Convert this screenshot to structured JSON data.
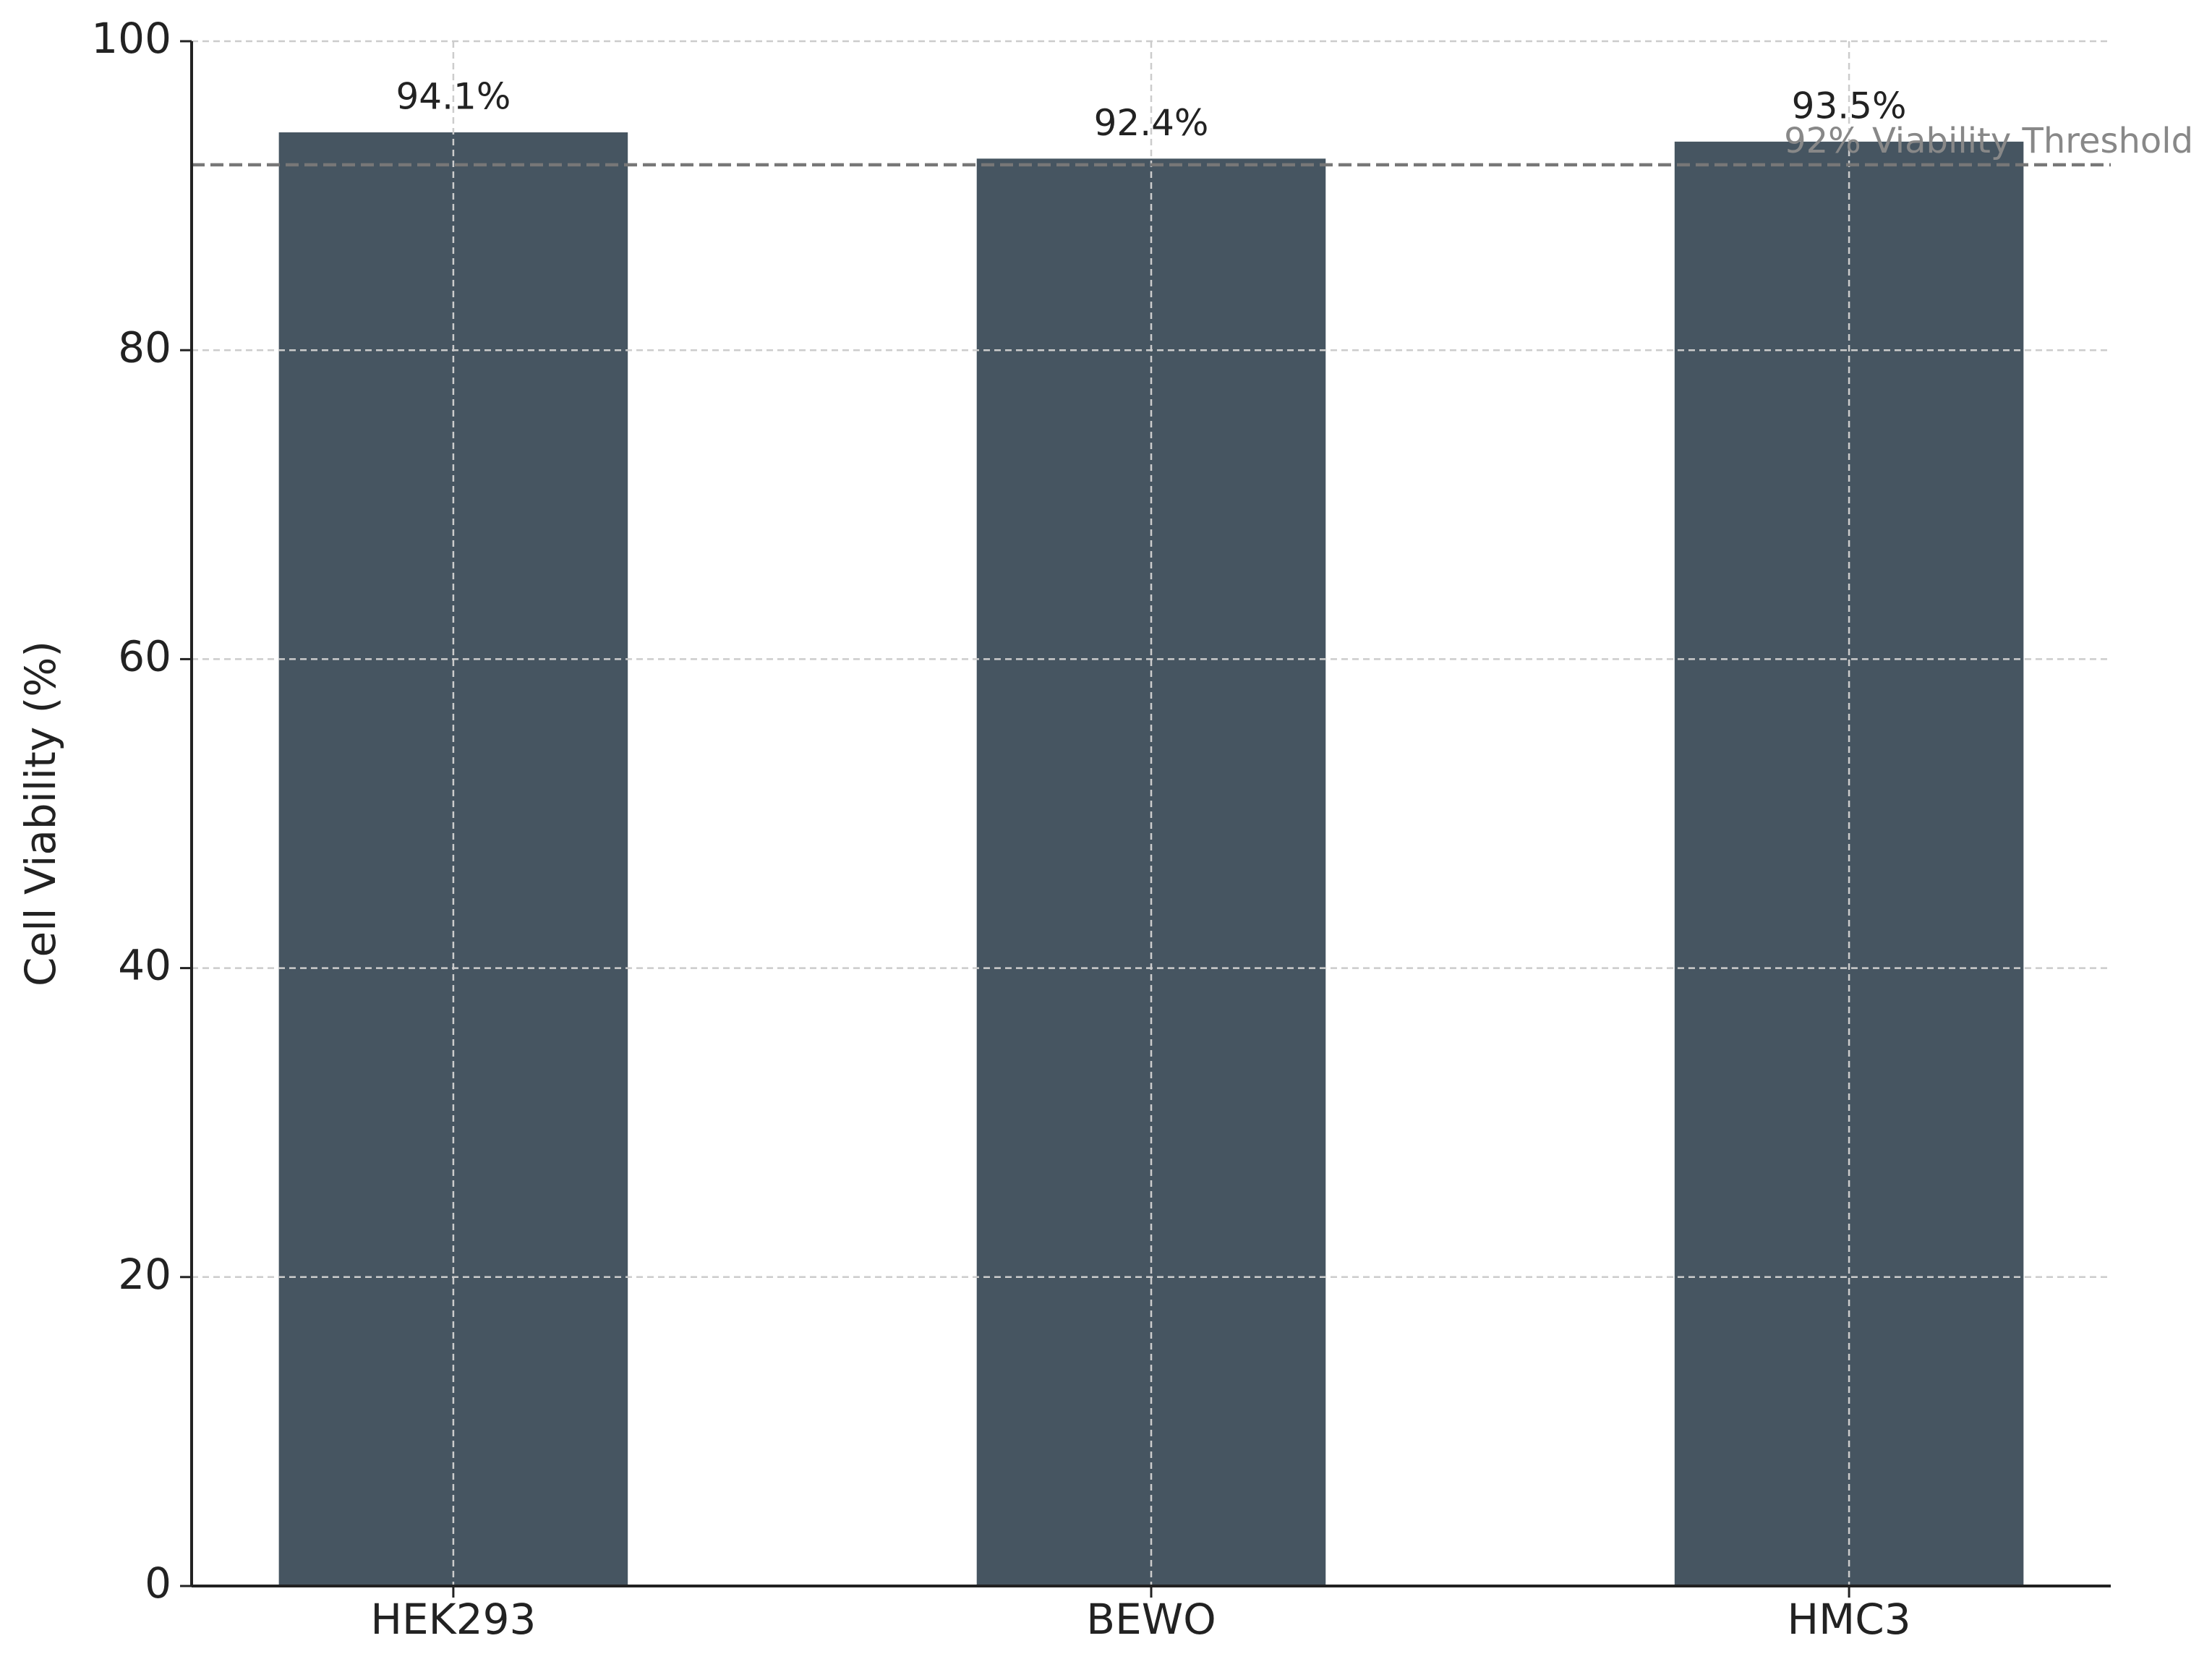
{
  "chart_data": {
    "type": "bar",
    "ylabel": "Cell Viability (%)",
    "categories": [
      "HEK293",
      "BEWO",
      "HMC3"
    ],
    "values": [
      94.1,
      92.4,
      93.5
    ],
    "value_labels": [
      "94.1%",
      "92.4%",
      "93.5%"
    ],
    "color": "#465561",
    "ylim": [
      0,
      100
    ],
    "yticks": [
      0,
      20,
      40,
      60,
      80,
      100
    ],
    "grid": true,
    "threshold": {
      "value": 92,
      "label": "92% Viability Threshold"
    }
  }
}
